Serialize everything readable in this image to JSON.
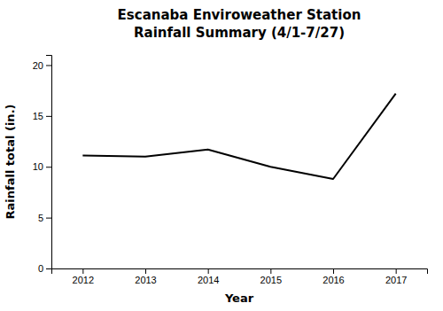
{
  "chart_data": {
    "type": "line",
    "title": "Escanaba Enviroweather Station",
    "subtitle": "Rainfall Summary (4/1-7/27)",
    "xlabel": "Year",
    "ylabel": "Rainfall total (in.)",
    "x": [
      2012,
      2013,
      2014,
      2015,
      2016,
      2017
    ],
    "values": [
      11.1,
      11.0,
      11.7,
      10.0,
      8.8,
      17.2
    ],
    "color": "#000000",
    "xlim": [
      2011.5,
      2017.5
    ],
    "xticks": [
      2012,
      2013,
      2014,
      2015,
      2016,
      2017
    ],
    "ylim": [
      0,
      21
    ],
    "yticks": [
      0,
      5,
      10,
      15,
      20
    ],
    "grid": false
  }
}
